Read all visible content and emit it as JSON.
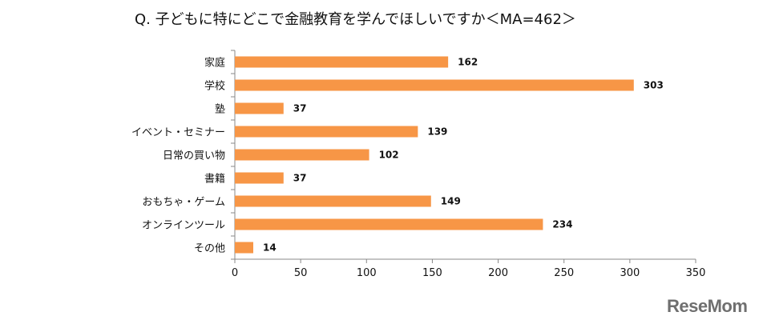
{
  "title": "Q. 子どもに特にどこで金融教育を学んでほしいですか＜MA=462＞",
  "watermark": "ReseMom",
  "colors": {
    "bar": "#f79646",
    "axis": "#888888"
  },
  "chart_data": {
    "type": "bar",
    "orientation": "horizontal",
    "title": "Q. 子どもに特にどこで金融教育を学んでほしいですか＜MA=462＞",
    "xlabel": "",
    "ylabel": "",
    "categories": [
      "家庭",
      "学校",
      "塾",
      "イベント・セミナー",
      "日常の買い物",
      "書籍",
      "おもちゃ・ゲーム",
      "オンラインツール",
      "その他"
    ],
    "values": [
      162,
      303,
      37,
      139,
      102,
      37,
      149,
      234,
      14
    ],
    "xlim": [
      0,
      350
    ],
    "ticks": [
      0,
      50,
      100,
      150,
      200,
      250,
      300,
      350
    ],
    "data_labels": true,
    "grid": false,
    "legend": "none"
  }
}
